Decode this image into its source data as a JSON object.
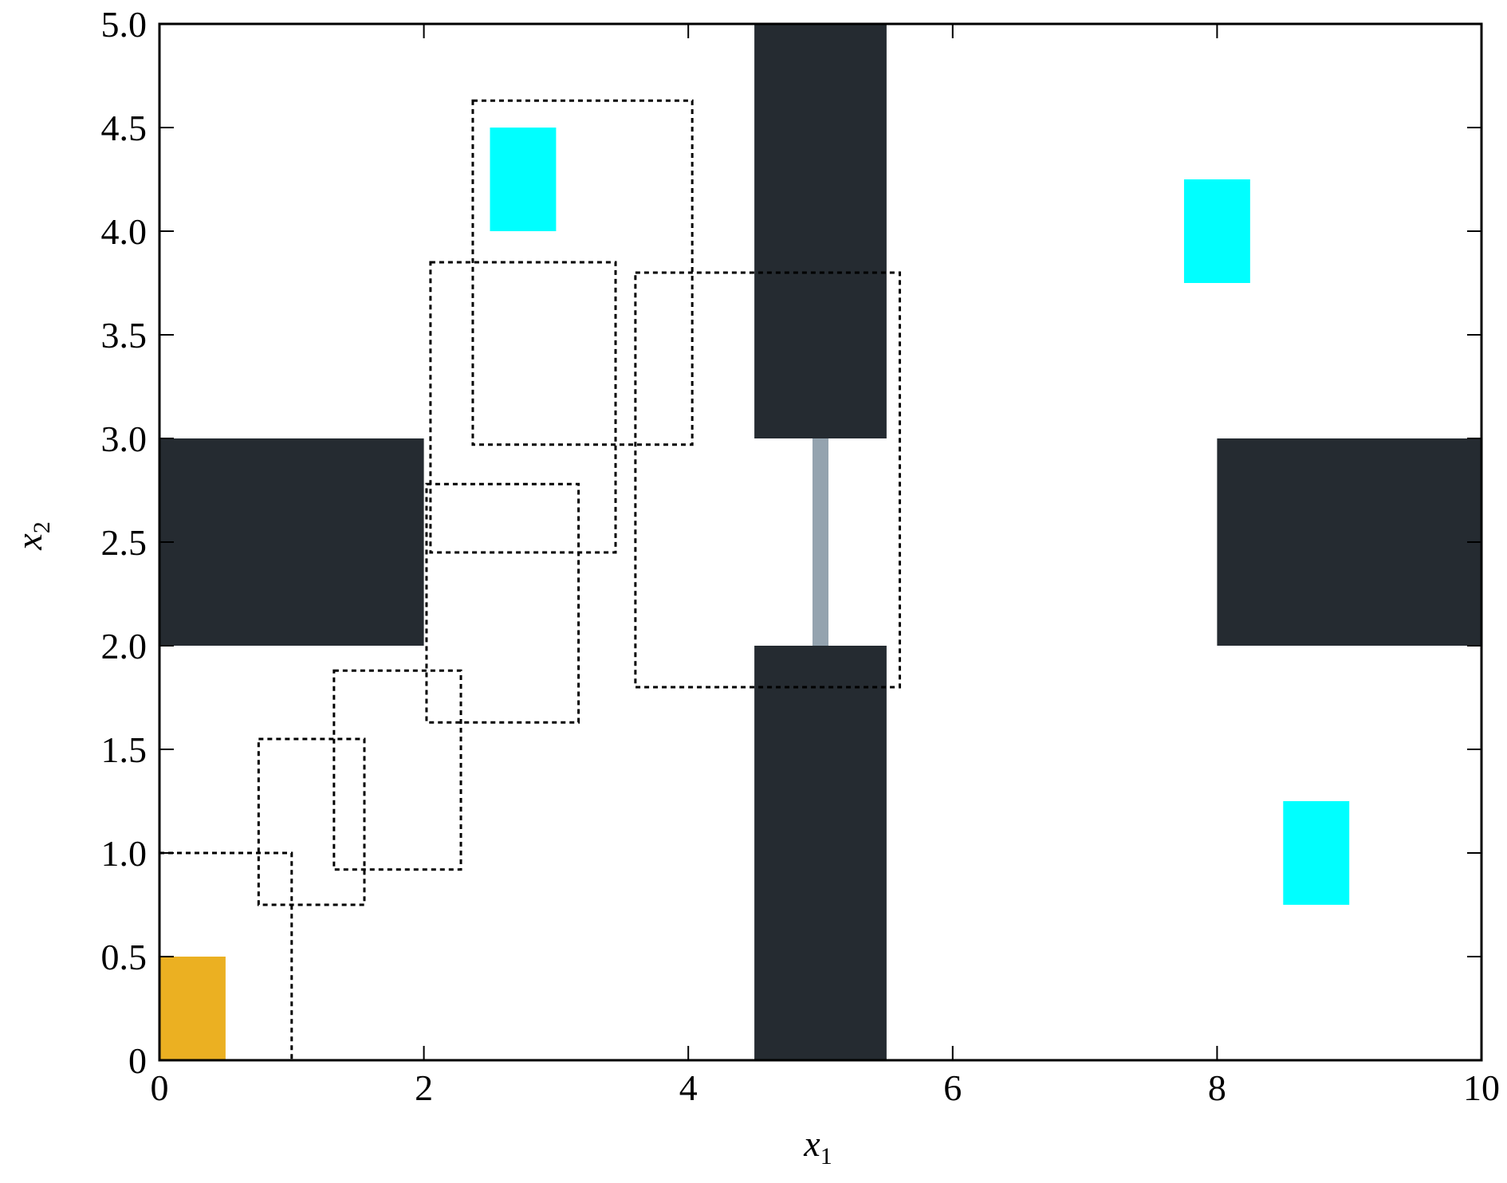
{
  "chart_data": {
    "type": "scatter",
    "title": "",
    "xlabel": "x",
    "xlabel_sub": "1",
    "ylabel": "x",
    "ylabel_sub": "2",
    "xlim": [
      0,
      10
    ],
    "ylim": [
      0,
      5
    ],
    "grid": false,
    "x_ticks": [
      0,
      2,
      4,
      6,
      8,
      10
    ],
    "x_tick_labels": [
      "0",
      "2",
      "4",
      "6",
      "8",
      "10"
    ],
    "y_ticks": [
      0,
      0.5,
      1.0,
      1.5,
      2.0,
      2.5,
      3.0,
      3.5,
      4.0,
      4.5,
      5.0
    ],
    "y_tick_labels": [
      "0",
      "0.5",
      "1.0",
      "1.5",
      "2.0",
      "2.5",
      "3.0",
      "3.5",
      "4.0",
      "4.5",
      "5.0"
    ],
    "colors": {
      "obstacle": "#252b31",
      "door": "#94a3af",
      "goal": "#00ffff",
      "start": "#ebb022",
      "box_outline": "#000000"
    },
    "obstacles": [
      {
        "x0": 0,
        "x1": 2,
        "y0": 2,
        "y1": 3
      },
      {
        "x0": 4.5,
        "x1": 5.5,
        "y0": 3,
        "y1": 5
      },
      {
        "x0": 4.5,
        "x1": 5.5,
        "y0": 0,
        "y1": 2
      },
      {
        "x0": 8,
        "x1": 10,
        "y0": 2,
        "y1": 3
      }
    ],
    "door": {
      "x": 5,
      "y0": 2,
      "y1": 3
    },
    "goals": [
      {
        "x0": 2.5,
        "x1": 3.0,
        "y0": 4.0,
        "y1": 4.5
      },
      {
        "x0": 7.75,
        "x1": 8.25,
        "y0": 3.75,
        "y1": 4.25
      },
      {
        "x0": 8.5,
        "x1": 9.0,
        "y0": 0.75,
        "y1": 1.25
      }
    ],
    "start": {
      "x0": 0,
      "x1": 0.5,
      "y0": 0,
      "y1": 0.5
    },
    "dashed_boxes": [
      {
        "x0": 0,
        "x1": 1.0,
        "y0": 0,
        "y1": 1.0
      },
      {
        "x0": 0.75,
        "x1": 1.55,
        "y0": 0.75,
        "y1": 1.55
      },
      {
        "x0": 1.32,
        "x1": 2.28,
        "y0": 0.92,
        "y1": 1.88
      },
      {
        "x0": 2.02,
        "x1": 3.17,
        "y0": 1.63,
        "y1": 2.78
      },
      {
        "x0": 2.05,
        "x1": 3.45,
        "y0": 2.45,
        "y1": 3.85
      },
      {
        "x0": 2.37,
        "x1": 4.03,
        "y0": 2.97,
        "y1": 4.63
      },
      {
        "x0": 3.6,
        "x1": 5.6,
        "y0": 1.8,
        "y1": 3.8
      }
    ]
  }
}
